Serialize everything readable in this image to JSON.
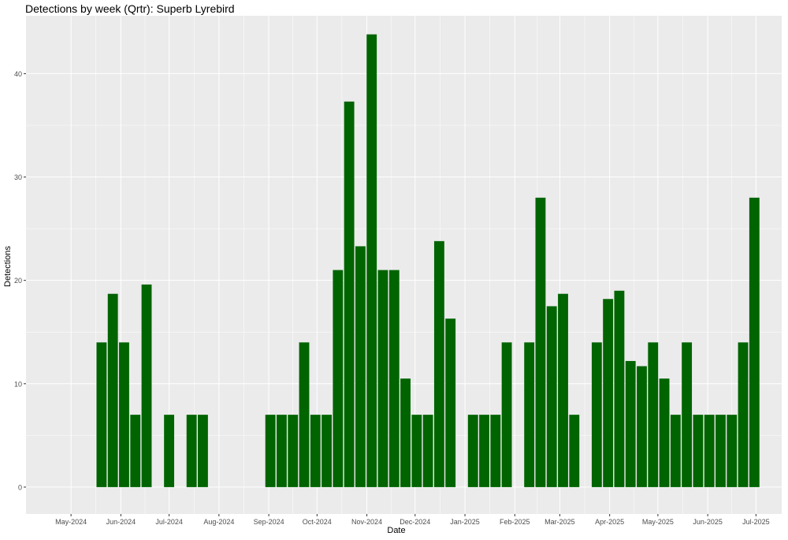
{
  "chart_data": {
    "type": "bar",
    "title": "Detections by week (Qrtr): Superb Lyrebird",
    "xlabel": "Date",
    "ylabel": "Detections",
    "ylim": [
      -2.6,
      45.6
    ],
    "y_ticks": [
      0,
      10,
      20,
      30,
      40
    ],
    "x_range": [
      "2024-04-03",
      "2025-07-17"
    ],
    "x_ticks": [
      {
        "date": "2024-05-01",
        "label": "May-2024"
      },
      {
        "date": "2024-06-01",
        "label": "Jun-2024"
      },
      {
        "date": "2024-07-01",
        "label": "Jul-2024"
      },
      {
        "date": "2024-08-01",
        "label": "Aug-2024"
      },
      {
        "date": "2024-09-01",
        "label": "Sep-2024"
      },
      {
        "date": "2024-10-01",
        "label": "Oct-2024"
      },
      {
        "date": "2024-11-01",
        "label": "Nov-2024"
      },
      {
        "date": "2024-12-01",
        "label": "Dec-2024"
      },
      {
        "date": "2025-01-01",
        "label": "Jan-2025"
      },
      {
        "date": "2025-02-01",
        "label": "Feb-2025"
      },
      {
        "date": "2025-03-01",
        "label": "Mar-2025"
      },
      {
        "date": "2025-04-01",
        "label": "Apr-2025"
      },
      {
        "date": "2025-05-01",
        "label": "May-2025"
      },
      {
        "date": "2025-06-01",
        "label": "Jun-2025"
      },
      {
        "date": "2025-07-01",
        "label": "Jul-2025"
      }
    ],
    "bar_color": "#006400",
    "panel_color": "#ebebeb",
    "grid": true,
    "legend": "none",
    "series": [
      {
        "x": [
          "2024-05-20",
          "2024-05-27",
          "2024-06-03",
          "2024-06-10",
          "2024-06-17",
          "2024-07-01",
          "2024-07-15",
          "2024-07-22",
          "2024-09-02",
          "2024-09-09",
          "2024-09-16",
          "2024-09-23",
          "2024-09-30",
          "2024-10-07",
          "2024-10-14",
          "2024-10-21",
          "2024-10-28",
          "2024-11-04",
          "2024-11-11",
          "2024-11-18",
          "2024-11-25",
          "2024-12-02",
          "2024-12-09",
          "2024-12-16",
          "2024-12-23",
          "2025-01-06",
          "2025-01-13",
          "2025-01-20",
          "2025-01-27",
          "2025-02-10",
          "2025-02-17",
          "2025-02-24",
          "2025-03-03",
          "2025-03-10",
          "2025-03-24",
          "2025-03-31",
          "2025-04-07",
          "2025-04-14",
          "2025-04-21",
          "2025-04-28",
          "2025-05-05",
          "2025-05-12",
          "2025-05-19",
          "2025-05-26",
          "2025-06-02",
          "2025-06-09",
          "2025-06-16",
          "2025-06-23",
          "2025-06-30"
        ],
        "values": [
          14,
          18.7,
          14,
          7,
          19.6,
          7,
          7,
          7,
          7,
          7,
          7,
          14,
          7,
          7,
          21,
          37.3,
          23.3,
          43.8,
          21,
          21,
          10.5,
          7,
          7,
          23.8,
          16.3,
          7,
          7,
          7,
          14,
          14,
          28,
          17.5,
          18.7,
          7,
          14,
          18.2,
          19,
          12.2,
          11.7,
          14,
          10.5,
          7,
          14,
          7,
          7,
          7,
          7,
          14,
          28
        ]
      }
    ]
  }
}
